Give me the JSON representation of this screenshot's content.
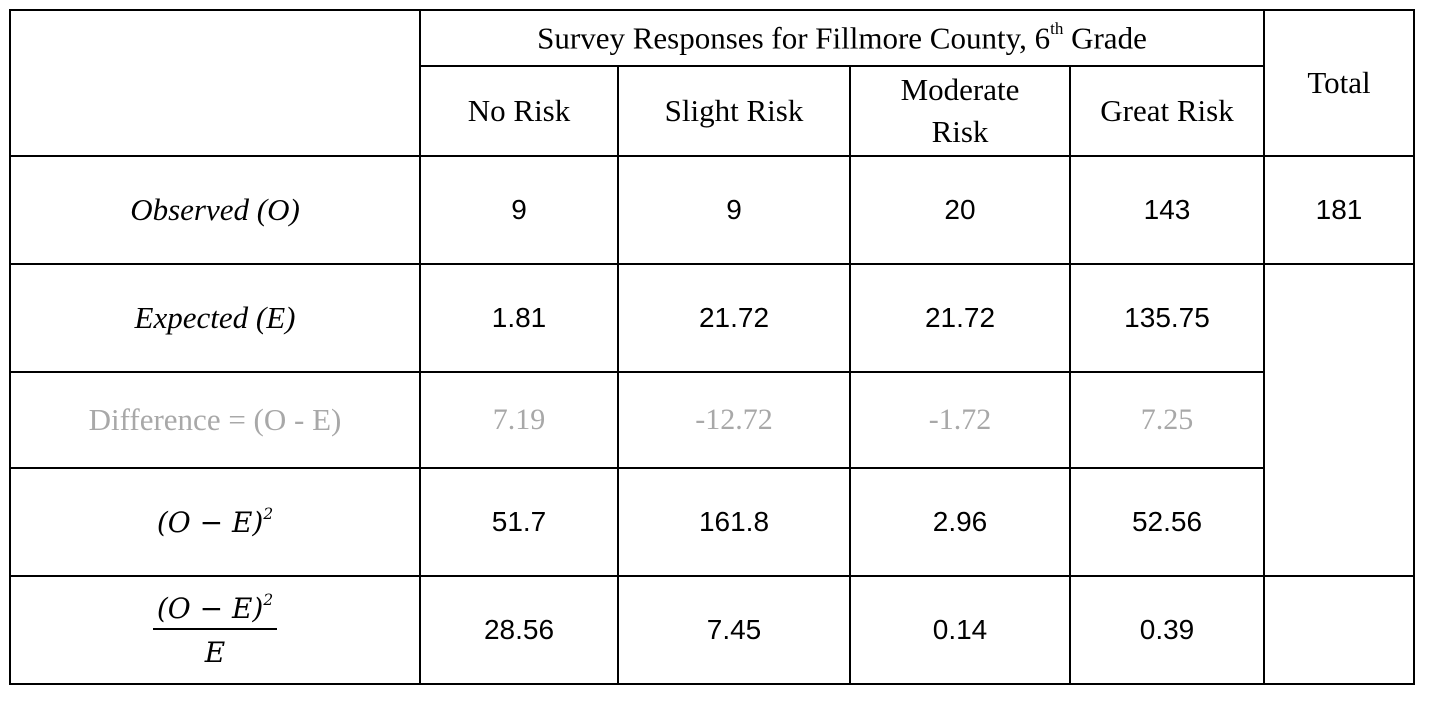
{
  "header": {
    "title_text": "Survey Responses for Fillmore County, 6",
    "title_sup": "th",
    "title_suffix": "Grade",
    "total": "Total",
    "columns": [
      "No Risk",
      "Slight Risk",
      "Moderate Risk",
      "Great Risk"
    ]
  },
  "rows": {
    "observed": {
      "label": "Observed (O)",
      "values": [
        "9",
        "9",
        "20",
        "143"
      ],
      "total": "181"
    },
    "expected": {
      "label": "Expected (E)",
      "values": [
        "1.81",
        "21.72",
        "21.72",
        "135.75"
      ]
    },
    "difference": {
      "label": "Difference = (O - E)",
      "values": [
        "7.19",
        "-12.72",
        "-1.72",
        "7.25"
      ]
    },
    "squared": {
      "label": "(O − E)",
      "sup": "2",
      "values": [
        "51.7",
        "161.8",
        "2.96",
        "52.56"
      ]
    },
    "ratio": {
      "numerator": "(O − E)",
      "sup": "2",
      "denominator": "E",
      "values": [
        "28.56",
        "7.45",
        "0.14",
        "0.39"
      ]
    }
  },
  "colors": {
    "faded_text": "#a8a8a8",
    "border": "#000000"
  }
}
